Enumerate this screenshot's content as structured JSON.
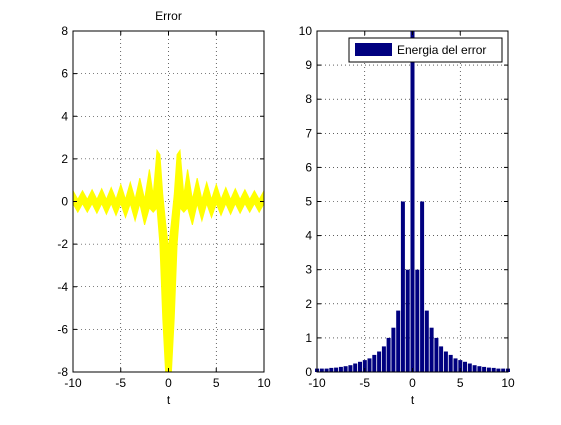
{
  "colors": {
    "error_fill": "#ffff00",
    "energy_fill": "#00007f",
    "axis": "#000000",
    "grid": "#000000",
    "background": "#ffffff"
  },
  "chart_data": [
    {
      "type": "area",
      "title": "Error",
      "xlabel": "t",
      "ylabel": "",
      "xlim": [
        -10,
        10
      ],
      "ylim": [
        -8,
        8
      ],
      "xticks": [
        -10,
        -5,
        0,
        5,
        10
      ],
      "yticks": [
        -8,
        -6,
        -4,
        -2,
        0,
        2,
        4,
        6,
        8
      ],
      "grid": true,
      "series": [
        {
          "color": "#ffff00",
          "note_values": "filled band of the oscillating error signal; values are the upper and lower envelope in data units",
          "x": [
            -10,
            -9.5,
            -9,
            -8.5,
            -8,
            -7.5,
            -7,
            -6.5,
            -6,
            -5.5,
            -5,
            -4.5,
            -4,
            -3.5,
            -3,
            -2.5,
            -2,
            -1.6,
            -1.2,
            -0.9,
            -0.6,
            -0.3,
            0,
            0.3,
            0.6,
            0.9,
            1.2,
            1.6,
            2,
            2.5,
            3,
            3.5,
            4,
            4.5,
            5,
            5.5,
            6,
            6.5,
            7,
            7.5,
            8,
            8.5,
            9,
            9.5,
            10
          ],
          "upper": [
            0.5,
            0.1,
            0.5,
            0.1,
            0.55,
            0.1,
            0.6,
            0.1,
            0.65,
            0.1,
            0.8,
            0.1,
            0.9,
            0.1,
            1.1,
            0.1,
            1.5,
            0.3,
            2.4,
            2.2,
            0.3,
            -1.0,
            -2.2,
            -1.0,
            0.3,
            2.2,
            2.4,
            0.3,
            1.5,
            0.1,
            1.1,
            0.1,
            0.9,
            0.1,
            0.8,
            0.1,
            0.65,
            0.1,
            0.6,
            0.1,
            0.55,
            0.1,
            0.5,
            0.1,
            0.5
          ],
          "lower": [
            -0.1,
            -0.5,
            -0.1,
            -0.5,
            -0.1,
            -0.55,
            -0.1,
            -0.6,
            -0.1,
            -0.65,
            -0.1,
            -0.75,
            -0.1,
            -0.9,
            -0.1,
            -1.1,
            -0.3,
            -0.5,
            -0.3,
            -2.0,
            -5.5,
            -8.0,
            -8.0,
            -8.0,
            -5.5,
            -2.0,
            -0.3,
            -0.5,
            -0.3,
            -1.1,
            -0.1,
            -0.9,
            -0.1,
            -0.75,
            -0.1,
            -0.65,
            -0.1,
            -0.6,
            -0.1,
            -0.55,
            -0.1,
            -0.5,
            -0.1,
            -0.5,
            -0.1
          ]
        }
      ]
    },
    {
      "type": "bar",
      "title": "",
      "xlabel": "t",
      "ylabel": "",
      "xlim": [
        -10,
        10
      ],
      "ylim": [
        0,
        10
      ],
      "xticks": [
        -10,
        -5,
        0,
        5,
        10
      ],
      "yticks": [
        0,
        1,
        2,
        3,
        4,
        5,
        6,
        7,
        8,
        9,
        10
      ],
      "grid": true,
      "legend": {
        "entries": [
          "Energia del error"
        ],
        "placement": "top-right"
      },
      "series": [
        {
          "name": "Energia del error",
          "color": "#00007f",
          "x": [
            -10,
            -9.5,
            -9,
            -8.5,
            -8,
            -7.5,
            -7,
            -6.5,
            -6,
            -5.5,
            -5,
            -4.5,
            -4,
            -3.5,
            -3,
            -2.5,
            -2,
            -1.5,
            -1,
            -0.5,
            0,
            0.5,
            1,
            1.5,
            2,
            2.5,
            3,
            3.5,
            4,
            4.5,
            5,
            5.5,
            6,
            6.5,
            7,
            7.5,
            8,
            8.5,
            9,
            9.5,
            10
          ],
          "values": [
            0.1,
            0.1,
            0.1,
            0.12,
            0.13,
            0.15,
            0.17,
            0.2,
            0.25,
            0.3,
            0.35,
            0.4,
            0.5,
            0.6,
            0.75,
            1.0,
            1.3,
            1.8,
            5.0,
            3.0,
            10.0,
            3.0,
            5.0,
            1.8,
            1.3,
            1.0,
            0.75,
            0.6,
            0.5,
            0.4,
            0.35,
            0.3,
            0.25,
            0.2,
            0.17,
            0.15,
            0.13,
            0.12,
            0.1,
            0.1,
            0.1
          ]
        }
      ]
    }
  ]
}
